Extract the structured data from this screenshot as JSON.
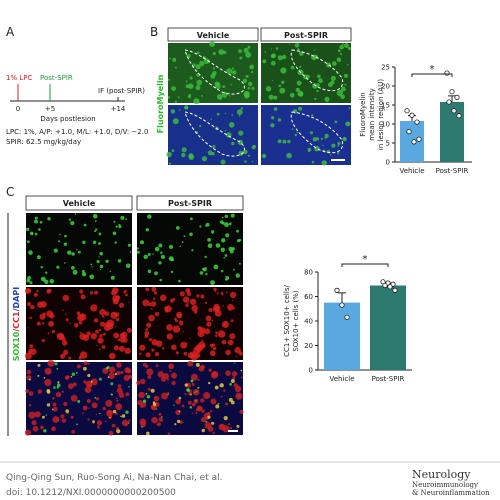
{
  "panel_a": {
    "label": "A",
    "events": [
      {
        "label": "1% LPC",
        "day": "0"
      },
      {
        "label": "Post-SPIR",
        "day": "+5"
      },
      {
        "label": "IF (post-SPIR)",
        "day": "+14"
      }
    ],
    "xlabel": "Days postlesion",
    "notes": [
      "LPC: 1%, A/P: +1.0, M/L: +1.0, D/V: −2.0",
      "SPIR: 62.5 mg/kg/day"
    ]
  },
  "panel_b": {
    "label": "B",
    "columns": [
      "Vehicle",
      "Post-SPIR"
    ],
    "stain": "FluoroMyelin"
  },
  "panel_c": {
    "label": "C",
    "columns": [
      "Vehicle",
      "Post-SPIR"
    ],
    "stain": [
      "SOX10",
      "/CC1",
      "/DAPI"
    ]
  },
  "chart_data": [
    {
      "type": "bar",
      "ylabel": [
        "FluoroMyelin",
        "mean intensity",
        "in lesion region (AU)"
      ],
      "categories": [
        "Vehicle",
        "Post-SPIR"
      ],
      "values": [
        10.8,
        15.8
      ],
      "errors": [
        1.4,
        1.6
      ],
      "colors": [
        "#5aa8e0",
        "#2e7a70"
      ],
      "points": [
        [
          13.5,
          12.3,
          10.5,
          8,
          5.3,
          6
        ],
        [
          23.4,
          18.5,
          17,
          15.8,
          13.5,
          12.2
        ]
      ],
      "ylim": [
        0,
        25
      ],
      "yticks": [
        0,
        5,
        10,
        15,
        20,
        25
      ],
      "significance": "*"
    },
    {
      "type": "bar",
      "ylabel": [
        "CC1+ SOX10+ cells/",
        "SOX10+ cells (%)"
      ],
      "categories": [
        "Vehicle",
        "Post-SPIR"
      ],
      "values": [
        55,
        69
      ],
      "errors": [
        8,
        2
      ],
      "colors": [
        "#5aa8e0",
        "#2e7a70"
      ],
      "points": [
        [
          65,
          53,
          43
        ],
        [
          72,
          71,
          70,
          69,
          68,
          65
        ]
      ],
      "ylim": [
        0,
        80
      ],
      "yticks": [
        0,
        20,
        40,
        60,
        80
      ],
      "significance": "*"
    }
  ],
  "footer": {
    "authors": "Qing-Qing Sun, Ruo-Song Ai, Na-Nan Chai, et al.",
    "doi": "doi: 10.1212/NXI.0000000000200500",
    "journal": [
      "Neurology",
      "Neuroimmunology",
      "& Neuroinflammation"
    ]
  }
}
